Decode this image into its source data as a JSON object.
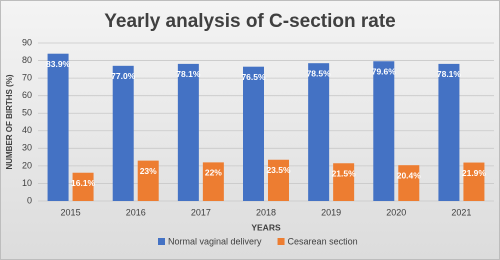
{
  "chart_data": {
    "type": "bar",
    "title": "Yearly analysis of C-section rate",
    "x_label": "YEARS",
    "y_label": "NUMBER OF BIRTHS (%)",
    "categories": [
      "2015",
      "2016",
      "2017",
      "2018",
      "2019",
      "2020",
      "2021"
    ],
    "series": [
      {
        "name": "Normal vaginal delivery",
        "color": "#4472c4",
        "values": [
          83.9,
          77.0,
          78.1,
          76.5,
          78.5,
          79.6,
          78.1
        ],
        "value_labels": [
          "83.9%",
          "77.0%",
          "78.1%",
          "76.5%",
          "78.5%",
          "79.6%",
          "78.1%"
        ]
      },
      {
        "name": "Cesarean section",
        "color": "#ed7d31",
        "values": [
          16.1,
          23,
          22,
          23.5,
          21.5,
          20.4,
          21.9
        ],
        "value_labels": [
          "16.1%",
          "23%",
          "22%",
          "23.5%",
          "21.5%",
          "20.4%",
          "21.9%"
        ]
      }
    ],
    "ylim": [
      0,
      90
    ],
    "yticks": [
      0,
      10,
      20,
      30,
      40,
      50,
      60,
      70,
      80,
      90
    ],
    "grid": true,
    "legend": "bottom"
  }
}
